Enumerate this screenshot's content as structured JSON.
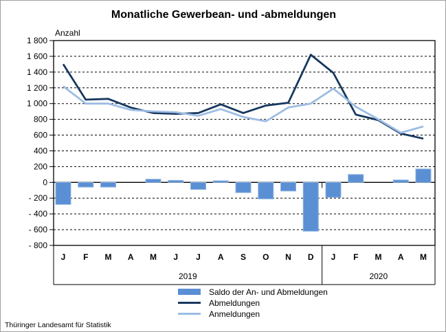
{
  "title": "Monatliche Gewerbean- und -abmeldungen",
  "source": "Thüringer Landesamt für Statistik",
  "chart_data": {
    "type": "combo-bar-line",
    "title": "Monatliche Gewerbean- und -abmeldungen",
    "ylabel": "Anzahl",
    "xlabel": "",
    "ylim": [
      -800,
      1800
    ],
    "ytick_step": 200,
    "grid": "horizontal-dashed",
    "legend_position": "bottom",
    "categories": [
      "J",
      "F",
      "M",
      "A",
      "M",
      "J",
      "J",
      "A",
      "S",
      "O",
      "N",
      "D",
      "J",
      "F",
      "M",
      "A",
      "M"
    ],
    "year_groups": [
      {
        "label": "2019",
        "from": 0,
        "to": 11
      },
      {
        "label": "2020",
        "from": 12,
        "to": 16
      }
    ],
    "series": [
      {
        "name": "Saldo der An- und Abmeldungen",
        "type": "bar",
        "color": "#5b8fd4",
        "edge_color": "#8db4e2",
        "values": [
          -280,
          -60,
          -60,
          0,
          40,
          25,
          -90,
          20,
          -130,
          -210,
          -110,
          -620,
          -190,
          100,
          0,
          30,
          170
        ]
      },
      {
        "name": "Abmeldungen",
        "type": "line",
        "color": "#17375e",
        "values": [
          1500,
          1050,
          1060,
          950,
          880,
          870,
          880,
          990,
          880,
          975,
          1010,
          1620,
          1390,
          860,
          790,
          620,
          555
        ]
      },
      {
        "name": "Anmeldungen",
        "type": "line",
        "color": "#9cbce4",
        "values": [
          1220,
          1000,
          1000,
          920,
          900,
          890,
          845,
          930,
          830,
          775,
          950,
          1000,
          1190,
          960,
          800,
          630,
          710
        ]
      }
    ]
  }
}
